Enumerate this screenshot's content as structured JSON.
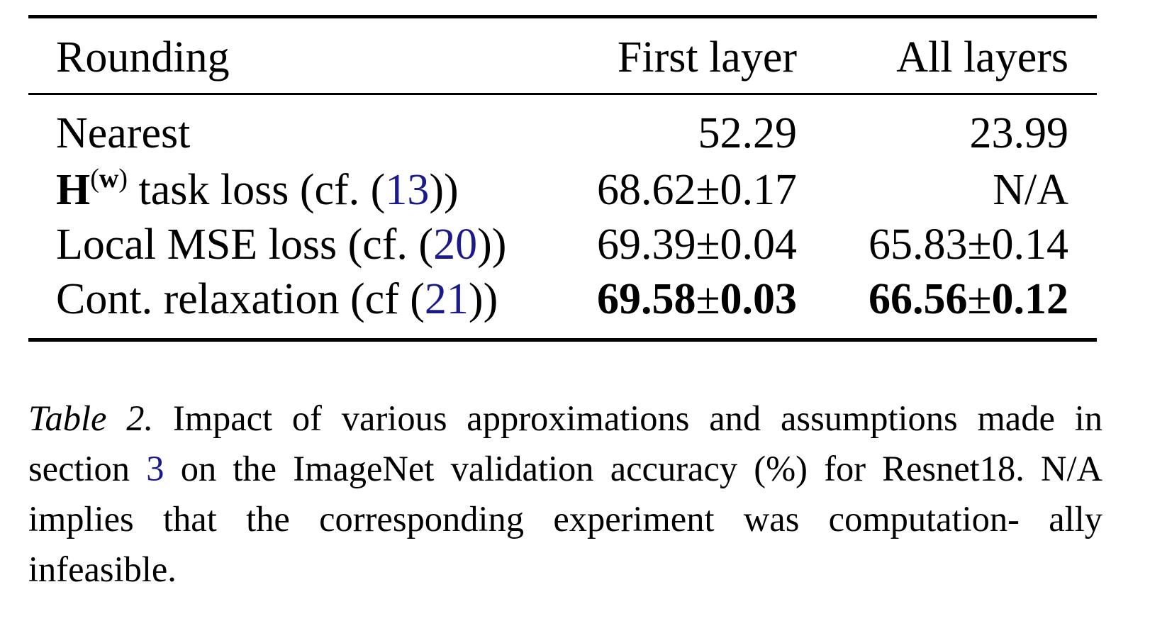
{
  "table": {
    "headers": [
      "Rounding",
      "First layer",
      "All layers"
    ],
    "rows": [
      {
        "method": "Nearest",
        "first_layer": "52.29",
        "all_layers": "23.99"
      },
      {
        "method_symbol": "H",
        "method_superscript": "w",
        "method_text": "task loss (cf. (",
        "method_ref": "13",
        "method_close": "))",
        "first_layer": "68.62±0.17",
        "all_layers": "N/A"
      },
      {
        "method_text": "Local MSE loss (cf. (",
        "method_ref": "20",
        "method_close": "))",
        "first_layer": "69.39±0.04",
        "all_layers": "65.83±0.14"
      },
      {
        "method_text": "Cont. relaxation (cf (",
        "method_ref": "21",
        "method_close": "))",
        "first_layer": "69.58",
        "first_layer_pm": "±",
        "first_layer_err": "0.03",
        "all_layers": "66.56",
        "all_layers_pm": "±",
        "all_layers_err": "0.12"
      }
    ]
  },
  "caption": {
    "label": "Table 2.",
    "text_before_ref": " Impact of various approximations and assumptions made in section ",
    "ref": "3",
    "text_after_ref": " on the ImageNet validation accuracy (%) for Resnet18. N/A implies that the corresponding experiment was computation- ally infeasible."
  },
  "colors": {
    "link": "#1a1a8c",
    "text": "#000000"
  }
}
